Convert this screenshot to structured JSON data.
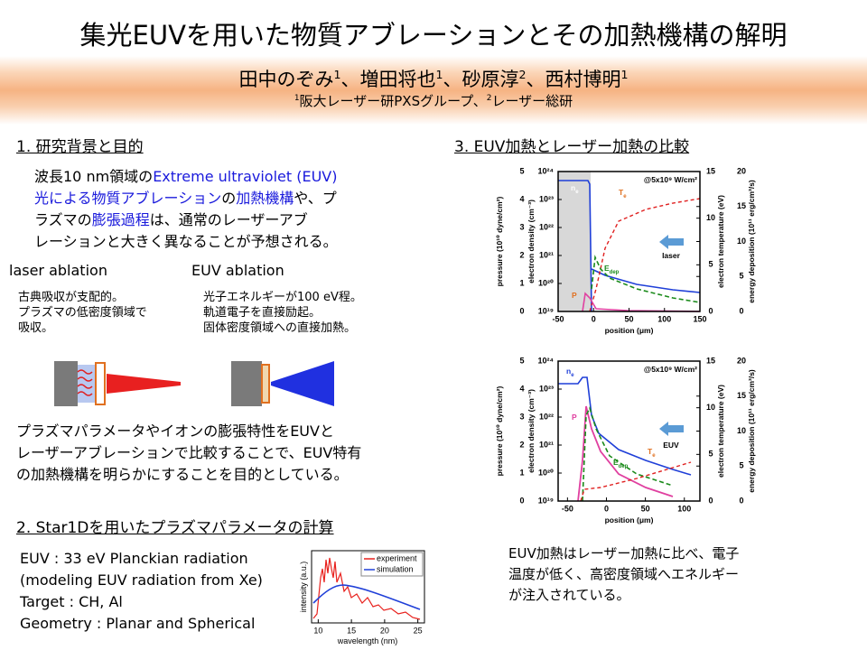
{
  "header": {
    "title": "集光EUVを用いた物質アブレーションとその加熱機構の解明",
    "authors": [
      {
        "name": "田中のぞみ",
        "sup": "1"
      },
      {
        "name": "、増田将也",
        "sup": "1"
      },
      {
        "name": "、砂原淳",
        "sup": "2"
      },
      {
        "name": "、西村博明",
        "sup": "1"
      }
    ],
    "affiliation": [
      {
        "sup": "1",
        "text": "阪大レーザー研PXSグループ、"
      },
      {
        "sup": "2",
        "text": "レーザー総研"
      }
    ]
  },
  "section1": {
    "heading": "1. 研究背景と目的",
    "paragraph": [
      [
        {
          "text": "波長10 nm領域の",
          "highlight": false
        },
        {
          "text": "Extreme ultraviolet (EUV)",
          "highlight": true
        }
      ],
      [
        {
          "text": "光による物質アブレーション",
          "highlight": true
        },
        {
          "text": "の",
          "highlight": false
        },
        {
          "text": "加熱機構",
          "highlight": true
        },
        {
          "text": "や、プ",
          "highlight": false
        }
      ],
      [
        {
          "text": "ラズマの",
          "highlight": false
        },
        {
          "text": "膨張過程",
          "highlight": true
        },
        {
          "text": "は、通常のレーザーアブ",
          "highlight": false
        }
      ],
      [
        {
          "text": "レーションと大きく異なることが予想される。",
          "highlight": false
        }
      ]
    ],
    "highlight_color": "#1a1adc",
    "laser": {
      "heading": "laser ablation",
      "lines": [
        "古典吸収が支配的。",
        "プラズマの低密度領域で",
        "吸収。"
      ]
    },
    "euv": {
      "heading": "EUV ablation",
      "lines": [
        "光子エネルギーが100 eV程。",
        "軌道電子を直接励起。",
        "固体密度領域への直接加熱。"
      ]
    },
    "conclusion": [
      "プラズマパラメータやイオンの膨張特性をEUVと",
      "レーザーアブレーションで比較することで、EUV特有",
      "の加熱機構を明らかにすることを目的としている。"
    ]
  },
  "section2": {
    "heading": "2. Star1Dを用いたプラズマパラメータの計算",
    "lines": [
      "EUV : 33 eV Planckian radiation",
      " (modeling EUV radiation from Xe)",
      "Target : CH, Al",
      "Geometry : Planar and Spherical"
    ],
    "spectrum": {
      "xlabel": "wavelength (nm)",
      "ylabel": "intensity (a.u.)",
      "xlim": [
        9,
        26
      ],
      "xticks": [
        10,
        15,
        20,
        25
      ],
      "legend": [
        {
          "name": "experiment",
          "color": "#e8201c"
        },
        {
          "name": "simulation",
          "color": "#1f3fd8"
        }
      ]
    }
  },
  "section3": {
    "heading": "3. EUV加熱とレーザー加熱の比較",
    "plots": [
      {
        "annotation": "@5x10⁹ W/cm²",
        "source": "laser",
        "xlabel": "position (μm)",
        "x": {
          "lim": [
            -50,
            150
          ],
          "ticks": [
            -50,
            0,
            50,
            100,
            150
          ]
        },
        "pressure": {
          "label": "pressure (10¹⁰ dyne/cm²)",
          "lim": [
            0,
            5
          ],
          "ticks": [
            0,
            1,
            2,
            3,
            4,
            5
          ]
        },
        "density": {
          "label": "electron density (cm⁻³)",
          "log": true,
          "lim": [
            1e+19,
            1e+24
          ],
          "ticks": [
            {
              "value": 1e+19,
              "label": "10¹⁹"
            },
            {
              "value": 1e+20,
              "label": "10²⁰"
            },
            {
              "value": 1e+21,
              "label": "10²¹"
            },
            {
              "value": 1e+22,
              "label": "10²²"
            },
            {
              "value": 1e+23,
              "label": "10²³"
            },
            {
              "value": 1e+24,
              "label": "10²⁴"
            }
          ]
        },
        "temperature": {
          "label": "electron temperature (eV)",
          "lim": [
            0,
            15
          ],
          "ticks": [
            0,
            5,
            10,
            15
          ]
        },
        "deposition": {
          "label": "energy deposition (10¹¹ erg/cm³/s)",
          "lim": [
            0,
            20
          ],
          "ticks": [
            0,
            5,
            10,
            15,
            20
          ]
        },
        "ne": {
          "text": "n",
          "sub": "e"
        },
        "te": {
          "text": "T",
          "sub": "e"
        },
        "edep": {
          "text": "E",
          "sub": "dep"
        },
        "p": "P"
      },
      {
        "annotation": "@5x10⁹ W/cm²",
        "source": "EUV",
        "xlabel": "position (μm)",
        "x": {
          "lim": [
            -62,
            120
          ],
          "ticks": [
            -50,
            0,
            50,
            100
          ]
        },
        "pressure": {
          "label": "pressure (10¹⁰ dyne/cm²)",
          "lim": [
            0,
            5
          ],
          "ticks": [
            0,
            1,
            2,
            3,
            4,
            5
          ]
        },
        "density": {
          "label": "electron density (cm⁻³)",
          "log": true,
          "lim": [
            1e+19,
            1e+24
          ],
          "ticks": [
            {
              "value": 1e+19,
              "label": "10¹⁹"
            },
            {
              "value": 1e+20,
              "label": "10²⁰"
            },
            {
              "value": 1e+21,
              "label": "10²¹"
            },
            {
              "value": 1e+22,
              "label": "10²²"
            },
            {
              "value": 1e+23,
              "label": "10²³"
            },
            {
              "value": 1e+24,
              "label": "10²⁴"
            }
          ]
        },
        "temperature": {
          "label": "electron temperature (eV)",
          "lim": [
            0,
            15
          ],
          "ticks": [
            0,
            5,
            10,
            15
          ]
        },
        "deposition": {
          "label": "energy deposition (10¹¹ erg/cm³/s)",
          "lim": [
            0,
            20
          ],
          "ticks": [
            0,
            5,
            10,
            15,
            20
          ]
        },
        "ne": {
          "text": "n",
          "sub": "e"
        },
        "te": {
          "text": "T",
          "sub": "e"
        },
        "edep": {
          "text": "E",
          "sub": "dep"
        },
        "p": "P"
      }
    ],
    "conclusion": [
      "EUV加熱はレーザー加熱に比べ、電子",
      "温度が低く、高密度領域へエネルギー",
      "が注入されている。"
    ]
  }
}
